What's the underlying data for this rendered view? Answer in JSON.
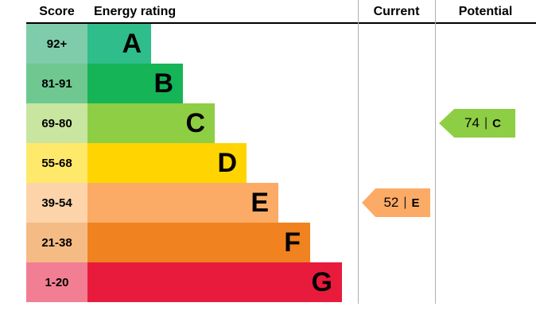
{
  "header": {
    "score": "Score",
    "energy_rating": "Energy rating",
    "current": "Current",
    "potential": "Potential"
  },
  "sep": "|",
  "bands": [
    {
      "score": "92+",
      "letter": "A",
      "bar_color": "#2ebd8b",
      "tint_color": "#7fccab"
    },
    {
      "score": "81-91",
      "letter": "B",
      "bar_color": "#15b456",
      "tint_color": "#6fc88f"
    },
    {
      "score": "69-80",
      "letter": "C",
      "bar_color": "#8ece44",
      "tint_color": "#c8e69f"
    },
    {
      "score": "55-68",
      "letter": "D",
      "bar_color": "#ffd400",
      "tint_color": "#ffe96a"
    },
    {
      "score": "39-54",
      "letter": "E",
      "bar_color": "#fbab66",
      "tint_color": "#fdd3a9"
    },
    {
      "score": "21-38",
      "letter": "F",
      "bar_color": "#f0821f",
      "tint_color": "#f5bb84"
    },
    {
      "score": "1-20",
      "letter": "G",
      "bar_color": "#e81b3c",
      "tint_color": "#f27e93"
    }
  ],
  "current": {
    "value": "52",
    "letter": "E",
    "color": "#fbab66",
    "band_index": 4
  },
  "potential": {
    "value": "74",
    "letter": "C",
    "color": "#8ece44",
    "band_index": 2
  },
  "chart_data": {
    "type": "bar",
    "title": "Energy rating",
    "categories": [
      "A",
      "B",
      "C",
      "D",
      "E",
      "F",
      "G"
    ],
    "score_ranges": [
      "92+",
      "81-91",
      "69-80",
      "55-68",
      "39-54",
      "21-38",
      "1-20"
    ],
    "current": {
      "score": 52,
      "rating": "E"
    },
    "potential": {
      "score": 74,
      "rating": "C"
    },
    "legend_position": "none",
    "grid": false
  }
}
